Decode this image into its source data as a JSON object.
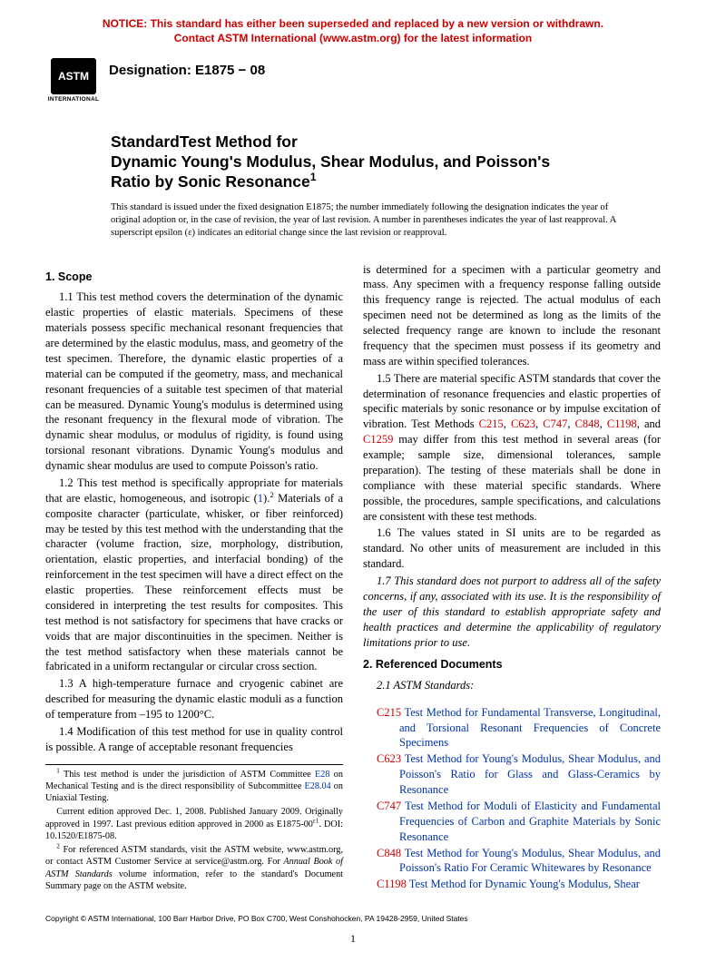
{
  "colors": {
    "notice_color": "#cc0000",
    "link_red": "#cc0000",
    "link_blue": "#0033aa",
    "text": "#000000",
    "background": "#ffffff"
  },
  "notice": {
    "line1": "NOTICE: This standard has either been superseded and replaced by a new version or withdrawn.",
    "line2": "Contact ASTM International (www.astm.org) for the latest information"
  },
  "logo": {
    "badge_text": "ASTM",
    "label": "INTERNATIONAL"
  },
  "designation": "Designation: E1875 − 08",
  "title": {
    "line1": "StandardTest Method for",
    "line2": "Dynamic Young's Modulus, Shear Modulus, and Poisson's",
    "line3": "Ratio by Sonic Resonance",
    "sup": "1"
  },
  "issuance": "This standard is issued under the fixed designation E1875; the number immediately following the designation indicates the year of original adoption or, in the case of revision, the year of last revision. A number in parentheses indicates the year of last reapproval. A superscript epsilon (ε) indicates an editorial change since the last revision or reapproval.",
  "sections": {
    "scope_head": "1. Scope",
    "p1_1": "1.1 This test method covers the determination of the dynamic elastic properties of elastic materials. Specimens of these materials possess specific mechanical resonant frequencies that are determined by the elastic modulus, mass, and geometry of the test specimen. Therefore, the dynamic elastic properties of a material can be computed if the geometry, mass, and mechanical resonant frequencies of a suitable test specimen of that material can be measured. Dynamic Young's modulus is determined using the resonant frequency in the flexural mode of vibration. The dynamic shear modulus, or modulus of rigidity, is found using torsional resonant vibrations. Dynamic Young's modulus and dynamic shear modulus are used to compute Poisson's ratio.",
    "p1_2a": "1.2 This test method is specifically appropriate for materials that are elastic, homogeneous, and isotropic (",
    "p1_2_link": "1",
    "p1_2b": ").",
    "p1_2_sup": "2",
    "p1_2c": " Materials of a composite character (particulate, whisker, or fiber reinforced) may be tested by this test method with the understanding that the character (volume fraction, size, morphology, distribution, orientation, elastic properties, and interfacial bonding) of the reinforcement in the test specimen will have a direct effect on the elastic properties. These reinforcement effects must be considered in interpreting the test results for composites. This test method is not satisfactory for specimens that have cracks or voids that are major discontinuities in the specimen. Neither is the test method satisfactory when these materials cannot be fabricated in a uniform rectangular or circular cross section.",
    "p1_3": "1.3 A high-temperature furnace and cryogenic cabinet are described for measuring the dynamic elastic moduli as a function of temperature from –195 to 1200°C.",
    "p1_4": "1.4 Modification of this test method for use in quality control is possible. A range of acceptable resonant frequencies",
    "p1_4b": "is determined for a specimen with a particular geometry and mass. Any specimen with a frequency response falling outside this frequency range is rejected. The actual modulus of each specimen need not be determined as long as the limits of the selected frequency range are known to include the resonant frequency that the specimen must possess if its geometry and mass are within specified tolerances.",
    "p1_5a": "1.5 There are material specific ASTM standards that cover the determination of resonance frequencies and elastic properties of specific materials by sonic resonance or by impulse excitation of vibration. Test Methods ",
    "p1_5_links": [
      "C215",
      "C623",
      "C747",
      "C848",
      "C1198",
      "C1259"
    ],
    "p1_5_sep": ", ",
    "p1_5_and": ", and ",
    "p1_5b": " may differ from this test method in several areas (for example; sample size, dimensional tolerances, sample preparation). The testing of these materials shall be done in compliance with these material specific standards. Where possible, the procedures, sample specifications, and calculations are consistent with these test methods.",
    "p1_6": "1.6 The values stated in SI units are to be regarded as standard. No other units of measurement are included in this standard.",
    "p1_7": "1.7 This standard does not purport to address all of the safety concerns, if any, associated with its use. It is the responsibility of the user of this standard to establish appropriate safety and health practices and determine the applicability of regulatory limitations prior to use.",
    "ref_head": "2. Referenced Documents",
    "ref_sub": "2.1 ASTM Standards:",
    "refs": [
      {
        "code": "C215",
        "title": "Test Method for Fundamental Transverse, Longitudinal, and Torsional Resonant Frequencies of Concrete Specimens"
      },
      {
        "code": "C623",
        "title": "Test Method for Young's Modulus, Shear Modulus, and Poisson's Ratio for Glass and Glass-Ceramics by Resonance"
      },
      {
        "code": "C747",
        "title": "Test Method for Moduli of Elasticity and Fundamental Frequencies of Carbon and Graphite Materials by Sonic Resonance"
      },
      {
        "code": "C848",
        "title": "Test Method for Young's Modulus, Shear Modulus, and Poisson's Ratio For Ceramic Whitewares by Resonance"
      },
      {
        "code": "C1198",
        "title": "Test Method for Dynamic Young's Modulus, Shear"
      }
    ]
  },
  "footnotes": {
    "f1a": " This test method is under the jurisdiction of ASTM Committee ",
    "f1_link1": "E28",
    "f1b": " on Mechanical Testing and is the direct responsibility of Subcommittee ",
    "f1_link2": "E28.04",
    "f1c": " on Uniaxial Testing.",
    "f1d": "Current edition approved Dec. 1, 2008. Published January 2009. Originally approved in 1997. Last previous edition approved in 2000 as E1875-00",
    "f1d_sup": "ε1",
    "f1e": ". DOI: 10.1520/E1875-08.",
    "f2a": " For referenced ASTM standards, visit the ASTM website, www.astm.org, or contact ASTM Customer Service at service@astm.org. For ",
    "f2_ital": "Annual Book of ASTM Standards",
    "f2b": " volume information, refer to the standard's Document Summary page on the ASTM website."
  },
  "copyright": "Copyright © ASTM International, 100 Barr Harbor Drive, PO Box C700, West Conshohocken, PA 19428-2959, United States",
  "page_number": "1"
}
